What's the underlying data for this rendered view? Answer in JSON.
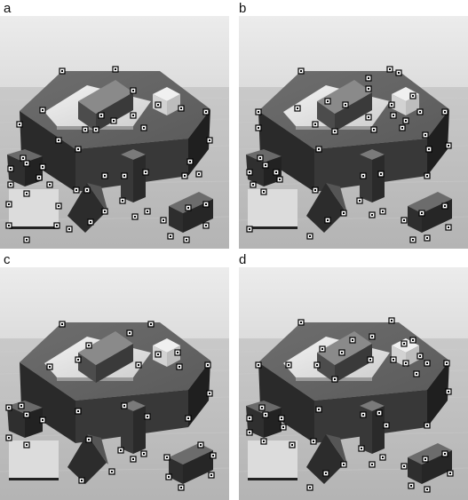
{
  "figure": {
    "panels": [
      {
        "label": "a",
        "marked_corners": 50
      },
      {
        "label": "b",
        "marked_corners": 49
      },
      {
        "label": "c",
        "marked_corners": 34
      },
      {
        "label": "d",
        "marked_corners": 46
      }
    ]
  },
  "colors": {
    "background": "#e9e9e9",
    "floor": "#bdbdbd",
    "block_dark": "#2e2e2e",
    "block_mid": "#6a6a6a",
    "block_light": "#d6d6d6",
    "marker": "#ffffff"
  }
}
